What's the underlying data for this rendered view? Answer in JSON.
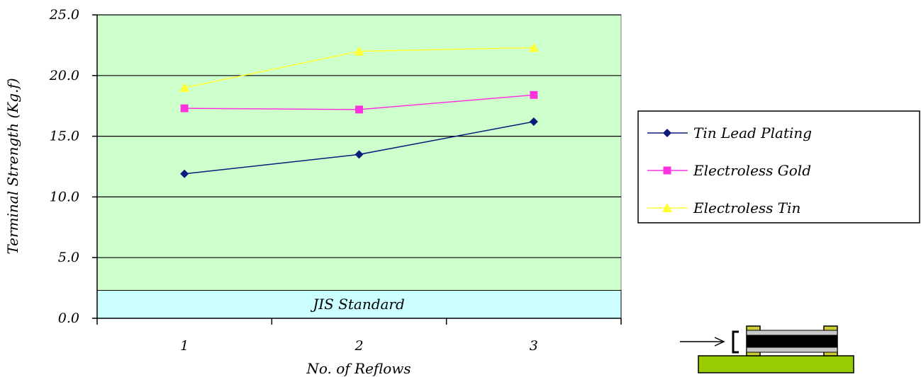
{
  "chart_data": {
    "type": "line",
    "title": "",
    "xlabel": "No. of Reflows",
    "ylabel": "Terminal Strength (Kg.f)",
    "categories": [
      "1",
      "2",
      "3"
    ],
    "yticks": [
      "0.0",
      "5.0",
      "10.0",
      "15.0",
      "20.0",
      "25.0"
    ],
    "ylim": [
      0,
      25
    ],
    "grid": true,
    "legend_position": "right",
    "series": [
      {
        "name": "Tin Lead Plating",
        "values": [
          11.9,
          13.5,
          16.2
        ],
        "color": "#0c1a7a",
        "marker": "diamond"
      },
      {
        "name": "Electroless Gold",
        "values": [
          17.3,
          17.2,
          18.4
        ],
        "color": "#ff33dd",
        "marker": "square"
      },
      {
        "name": "Electroless Tin",
        "values": [
          19.0,
          22.0,
          22.3
        ],
        "color": "#ffff33",
        "marker": "triangle"
      }
    ],
    "band": {
      "label": "JIS Standard",
      "from": 0,
      "to": 2.3,
      "color": "#ccffff"
    },
    "plot_background": "#ccffcc"
  },
  "diagram": {
    "board_color": "#99cc00",
    "pad_color": "#cccc33",
    "body_color": "#000000",
    "plate_color": "#c8c8c8"
  }
}
